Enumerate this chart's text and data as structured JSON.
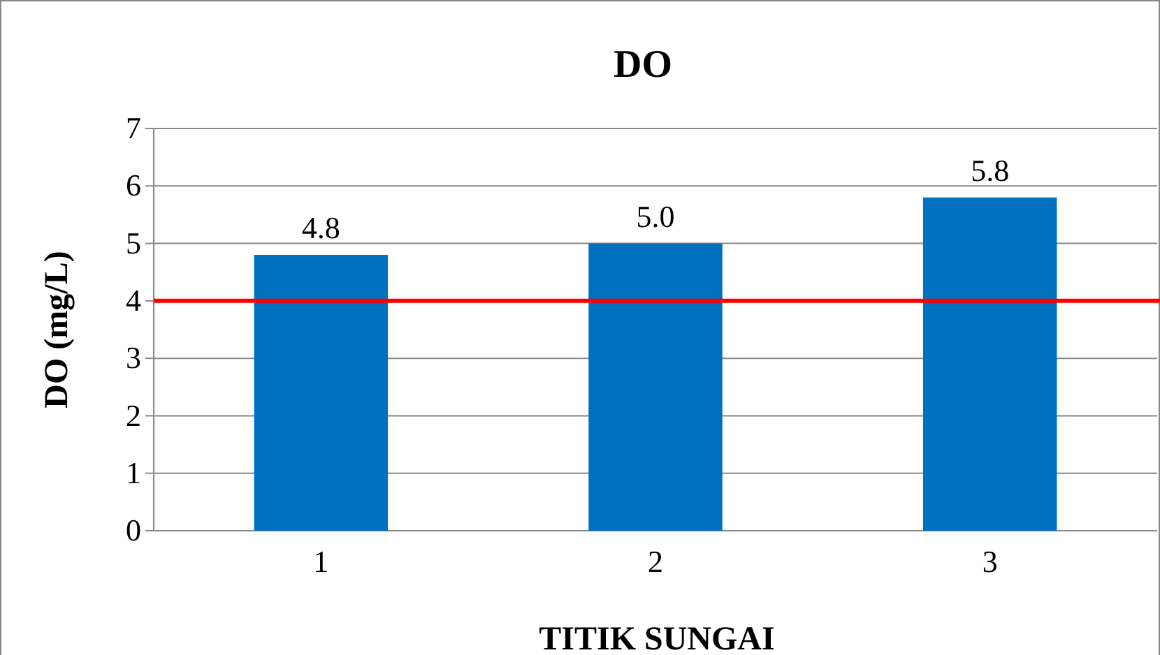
{
  "chart_data": {
    "type": "bar",
    "title": "DO",
    "xlabel": "TITIK SUNGAI",
    "ylabel": "DO (mg/L)",
    "categories": [
      "1",
      "2",
      "3"
    ],
    "values": [
      4.8,
      5.0,
      5.8
    ],
    "value_labels": [
      "4.8",
      "5.0",
      "5.8"
    ],
    "color": "#0070c0",
    "ylim": [
      0,
      7
    ],
    "yticks": [
      0,
      1,
      2,
      3,
      4,
      5,
      6,
      7
    ],
    "grid": "y",
    "ref_lines": [
      {
        "axis": "y",
        "value": 4,
        "color": "#ff0000"
      }
    ]
  }
}
